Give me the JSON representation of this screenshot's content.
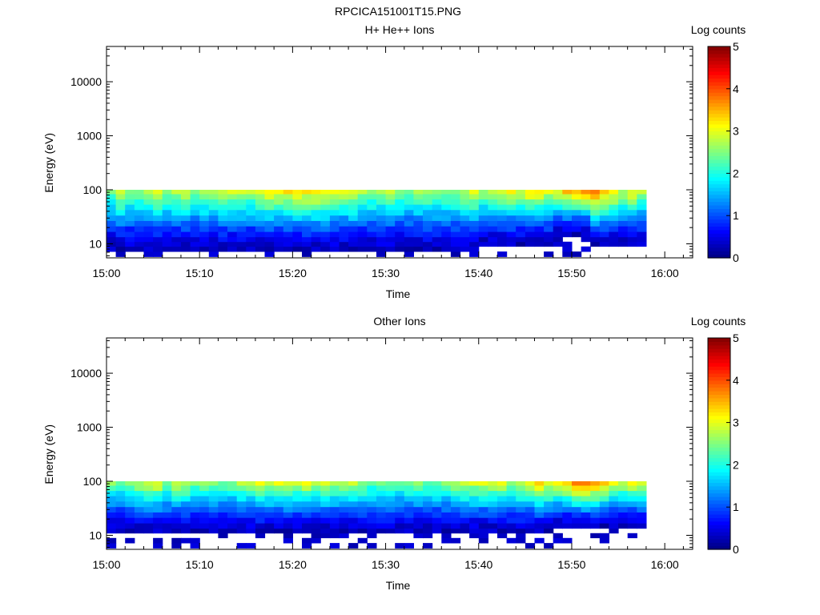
{
  "figure_title": "RPCICA151001T15.PNG",
  "chart_data": [
    {
      "type": "heatmap",
      "title": "H+ He++ Ions",
      "xlabel": "Time",
      "ylabel": "Energy (eV)",
      "x_ticks": [
        "15:00",
        "15:10",
        "15:20",
        "15:30",
        "15:40",
        "15:50",
        "16:00"
      ],
      "x_range": [
        "15:00",
        "16:03"
      ],
      "data_extent": [
        "15:00",
        "15:58"
      ],
      "y_scale": "log",
      "y_ticks": [
        10,
        100,
        1000,
        10000
      ],
      "y_tick_labels": [
        "10",
        "100",
        "1000",
        "10000"
      ],
      "y_range": [
        5.5,
        45000
      ],
      "energy_bins_eV": [
        6.5,
        8,
        10,
        12,
        15,
        19,
        24,
        30,
        38,
        48,
        60,
        75,
        94
      ],
      "colorbar": {
        "label": "Log counts",
        "range": [
          0,
          5
        ],
        "ticks": [
          "0",
          "1",
          "2",
          "3",
          "4",
          "5"
        ],
        "colormap": "jet"
      },
      "summary_columns": [
        {
          "time": "15:00",
          "max_log_counts": 2.6,
          "lowest_energy_eV": 8
        },
        {
          "time": "15:05",
          "max_log_counts": 2.9,
          "lowest_energy_eV": 8
        },
        {
          "time": "15:10",
          "max_log_counts": 2.6,
          "lowest_energy_eV": 10
        },
        {
          "time": "15:20",
          "max_log_counts": 3.3,
          "lowest_energy_eV": 8
        },
        {
          "time": "15:30",
          "max_log_counts": 2.6,
          "lowest_energy_eV": 8
        },
        {
          "time": "15:40",
          "max_log_counts": 2.8,
          "lowest_energy_eV": 10
        },
        {
          "time": "15:48",
          "max_log_counts": 3.2,
          "lowest_energy_eV": 15
        },
        {
          "time": "15:50",
          "max_log_counts": 3.6,
          "lowest_energy_eV": 15
        },
        {
          "time": "15:52",
          "max_log_counts": 3.8,
          "lowest_energy_eV": 15
        },
        {
          "time": "15:55",
          "max_log_counts": 2.9,
          "lowest_energy_eV": 10
        }
      ]
    },
    {
      "type": "heatmap",
      "title": "Other Ions",
      "xlabel": "Time",
      "ylabel": "Energy (eV)",
      "x_ticks": [
        "15:00",
        "15:10",
        "15:20",
        "15:30",
        "15:40",
        "15:50",
        "16:00"
      ],
      "x_range": [
        "15:00",
        "16:03"
      ],
      "data_extent": [
        "15:00",
        "15:58"
      ],
      "y_scale": "log",
      "y_ticks": [
        10,
        100,
        1000,
        10000
      ],
      "y_tick_labels": [
        "10",
        "100",
        "1000",
        "10000"
      ],
      "y_range": [
        5.5,
        45000
      ],
      "energy_bins_eV": [
        6.5,
        8,
        10,
        12,
        15,
        19,
        24,
        30,
        38,
        48,
        60,
        75,
        94
      ],
      "colorbar": {
        "label": "Log counts",
        "range": [
          0,
          5
        ],
        "ticks": [
          "0",
          "1",
          "2",
          "3",
          "4",
          "5"
        ],
        "colormap": "jet"
      },
      "summary_columns": [
        {
          "time": "15:00",
          "max_log_counts": 2.5,
          "lowest_energy_eV": 12
        },
        {
          "time": "15:05",
          "max_log_counts": 2.8,
          "lowest_energy_eV": 12
        },
        {
          "time": "15:10",
          "max_log_counts": 2.5,
          "lowest_energy_eV": 12
        },
        {
          "time": "15:20",
          "max_log_counts": 3.0,
          "lowest_energy_eV": 12
        },
        {
          "time": "15:30",
          "max_log_counts": 2.5,
          "lowest_energy_eV": 12
        },
        {
          "time": "15:40",
          "max_log_counts": 2.8,
          "lowest_energy_eV": 12
        },
        {
          "time": "15:48",
          "max_log_counts": 3.2,
          "lowest_energy_eV": 15
        },
        {
          "time": "15:50",
          "max_log_counts": 3.6,
          "lowest_energy_eV": 15
        },
        {
          "time": "15:52",
          "max_log_counts": 3.7,
          "lowest_energy_eV": 15
        },
        {
          "time": "15:55",
          "max_log_counts": 2.9,
          "lowest_energy_eV": 15
        }
      ]
    }
  ]
}
